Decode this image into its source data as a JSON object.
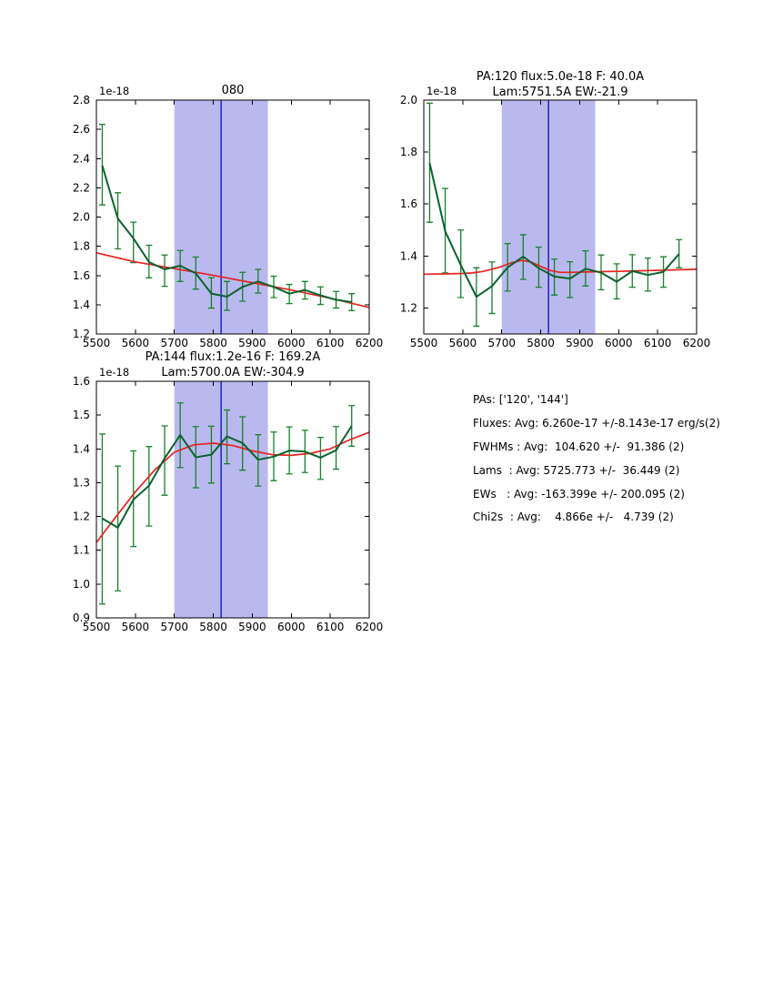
{
  "page": {
    "background": "#ffffff"
  },
  "colors": {
    "spectrum_line": "#0b622d",
    "error_bar": "#17812a",
    "fit_line": "#e62222",
    "band_fill": "#b9b9ef",
    "center_line": "#1414cc",
    "axis": "#000000"
  },
  "stats_panel": {
    "lines": [
      "PAs: ['120', '144']",
      "Fluxes: Avg: 6.260e-17 +/-8.143e-17 erg/s(2)",
      "FWHMs : Avg:  104.620 +/-  91.386 (2)",
      "Lams  : Avg: 5725.773 +/-  36.449 (2)",
      "EWs   : Avg: -163.399e +/- 200.095 (2)",
      "Chi2s  : Avg:    4.866e +/-   4.739 (2)"
    ]
  },
  "chart_data": [
    {
      "type": "line",
      "title": "080",
      "offset": "1e-18",
      "xlabel": "",
      "ylabel": "",
      "xlim": [
        5500,
        6200
      ],
      "ylim": [
        1.2,
        2.8
      ],
      "xticks": [
        5500,
        5600,
        5700,
        5800,
        5900,
        6000,
        6100,
        6200
      ],
      "xtick_labels": [
        "5500",
        "5600",
        "5700",
        "5800",
        "5900",
        "6000",
        "6100",
        "6200"
      ],
      "yticks": [
        1.2,
        1.4,
        1.6,
        1.8,
        2.0,
        2.2,
        2.4,
        2.6,
        2.8
      ],
      "ytick_labels": [
        "1.2",
        "1.4",
        "1.6",
        "1.8",
        "2.0",
        "2.2",
        "2.4",
        "2.6",
        "2.8"
      ],
      "band": [
        5700,
        5940
      ],
      "vline": 5820,
      "x": [
        5515,
        5555,
        5595,
        5635,
        5675,
        5715,
        5755,
        5795,
        5835,
        5875,
        5915,
        5955,
        5995,
        6035,
        6075,
        6115,
        6155
      ],
      "y": [
        2.353,
        1.99,
        1.854,
        1.692,
        1.642,
        1.667,
        1.615,
        1.476,
        1.455,
        1.522,
        1.559,
        1.522,
        1.476,
        1.501,
        1.464,
        1.434,
        1.418
      ],
      "err_lo": [
        2.083,
        1.782,
        1.688,
        1.584,
        1.526,
        1.559,
        1.507,
        1.377,
        1.362,
        1.424,
        1.48,
        1.449,
        1.408,
        1.439,
        1.402,
        1.377,
        1.36
      ],
      "err_hi": [
        2.634,
        2.166,
        1.965,
        1.807,
        1.74,
        1.771,
        1.726,
        1.585,
        1.559,
        1.622,
        1.642,
        1.595,
        1.539,
        1.559,
        1.522,
        1.491,
        1.476
      ],
      "fit_x": [
        5500,
        5600,
        5700,
        5800,
        5900,
        6000,
        6100,
        6200
      ],
      "fit_y": [
        1.755,
        1.693,
        1.647,
        1.601,
        1.551,
        1.501,
        1.445,
        1.381
      ],
      "series_names": [
        "spectrum",
        "fit"
      ]
    },
    {
      "type": "line",
      "title": "PA:120 flux:5.0e-18 F: 40.0A",
      "title2": "Lam:5751.5A EW:-21.9",
      "offset": "1e-18",
      "xlabel": "",
      "ylabel": "",
      "xlim": [
        5500,
        6200
      ],
      "ylim": [
        1.1,
        2.0
      ],
      "xticks": [
        5500,
        5600,
        5700,
        5800,
        5900,
        6000,
        6100,
        6200
      ],
      "xtick_labels": [
        "5500",
        "5600",
        "5700",
        "5800",
        "5900",
        "6000",
        "6100",
        "6200"
      ],
      "yticks": [
        1.2,
        1.4,
        1.6,
        1.8,
        2.0
      ],
      "ytick_labels": [
        "1.2",
        "1.4",
        "1.6",
        "1.8",
        "2.0"
      ],
      "band": [
        5700,
        5940
      ],
      "vline": 5820,
      "x": [
        5515,
        5555,
        5595,
        5635,
        5675,
        5715,
        5755,
        5795,
        5835,
        5875,
        5915,
        5955,
        5995,
        6035,
        6075,
        6115,
        6155
      ],
      "y": [
        1.758,
        1.495,
        1.365,
        1.243,
        1.284,
        1.356,
        1.398,
        1.353,
        1.321,
        1.313,
        1.351,
        1.336,
        1.301,
        1.342,
        1.327,
        1.339,
        1.408
      ],
      "err_lo": [
        1.53,
        1.335,
        1.24,
        1.13,
        1.179,
        1.265,
        1.31,
        1.28,
        1.25,
        1.24,
        1.285,
        1.27,
        1.235,
        1.28,
        1.265,
        1.28,
        1.355
      ],
      "err_hi": [
        1.988,
        1.66,
        1.5,
        1.355,
        1.377,
        1.448,
        1.482,
        1.434,
        1.388,
        1.378,
        1.42,
        1.404,
        1.37,
        1.405,
        1.392,
        1.397,
        1.463
      ],
      "fit_x": [
        5500,
        5550,
        5600,
        5625,
        5650,
        5675,
        5700,
        5725,
        5751,
        5775,
        5800,
        5825,
        5850,
        5875,
        5900,
        5950,
        6000,
        6050,
        6100,
        6150,
        6200
      ],
      "fit_y": [
        1.33,
        1.331,
        1.333,
        1.335,
        1.34,
        1.349,
        1.36,
        1.374,
        1.383,
        1.377,
        1.36,
        1.344,
        1.337,
        1.337,
        1.338,
        1.34,
        1.341,
        1.343,
        1.345,
        1.347,
        1.349
      ],
      "series_names": [
        "spectrum",
        "fit"
      ]
    },
    {
      "type": "line",
      "title": "PA:144 flux:1.2e-16 F: 169.2A",
      "title2": "Lam:5700.0A EW:-304.9",
      "offset": "1e-18",
      "xlabel": "",
      "ylabel": "",
      "xlim": [
        5500,
        6200
      ],
      "ylim": [
        0.9,
        1.6
      ],
      "xticks": [
        5500,
        5600,
        5700,
        5800,
        5900,
        6000,
        6100,
        6200
      ],
      "xtick_labels": [
        "5500",
        "5600",
        "5700",
        "5800",
        "5900",
        "6000",
        "6100",
        "6200"
      ],
      "yticks": [
        0.9,
        1.0,
        1.1,
        1.2,
        1.3,
        1.4,
        1.5,
        1.6
      ],
      "ytick_labels": [
        "0.9",
        "1.0",
        "1.1",
        "1.2",
        "1.3",
        "1.4",
        "1.5",
        "1.6"
      ],
      "band": [
        5700,
        5940
      ],
      "vline": 5820,
      "x": [
        5515,
        5555,
        5595,
        5635,
        5675,
        5715,
        5755,
        5795,
        5835,
        5875,
        5915,
        5955,
        5995,
        6035,
        6075,
        6115,
        6155
      ],
      "y": [
        1.194,
        1.167,
        1.25,
        1.291,
        1.372,
        1.441,
        1.375,
        1.383,
        1.437,
        1.417,
        1.368,
        1.377,
        1.395,
        1.392,
        1.374,
        1.396,
        1.468
      ],
      "err_lo": [
        0.941,
        0.98,
        1.111,
        1.172,
        1.263,
        1.345,
        1.285,
        1.299,
        1.356,
        1.337,
        1.29,
        1.306,
        1.326,
        1.33,
        1.31,
        1.34,
        1.408
      ],
      "err_hi": [
        1.444,
        1.349,
        1.394,
        1.407,
        1.468,
        1.536,
        1.466,
        1.467,
        1.515,
        1.495,
        1.442,
        1.45,
        1.465,
        1.455,
        1.434,
        1.466,
        1.528
      ],
      "fit_x": [
        5500,
        5550,
        5600,
        5650,
        5700,
        5750,
        5800,
        5850,
        5900,
        5950,
        6000,
        6050,
        6100,
        6150,
        6200
      ],
      "fit_y": [
        1.123,
        1.199,
        1.273,
        1.338,
        1.39,
        1.412,
        1.417,
        1.41,
        1.394,
        1.383,
        1.381,
        1.387,
        1.4,
        1.427,
        1.449
      ],
      "series_names": [
        "spectrum",
        "fit"
      ]
    }
  ]
}
